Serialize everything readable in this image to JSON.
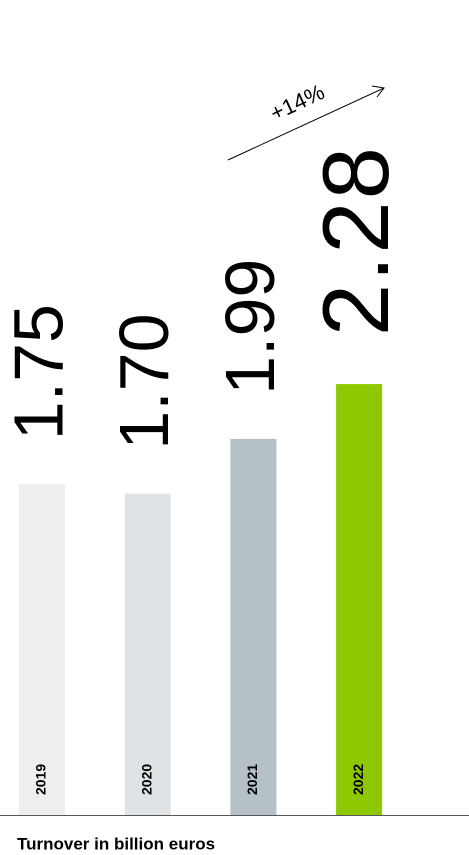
{
  "chart_data": {
    "type": "bar",
    "title": "Turnover in billion euros",
    "categories": [
      "2019",
      "2020",
      "2021",
      "2022"
    ],
    "values": [
      1.75,
      1.7,
      1.99,
      2.28
    ],
    "value_labels": [
      "1.75",
      "1.70",
      "1.99",
      "2.28"
    ],
    "colors": [
      "#eceef0",
      "#dfe3e6",
      "#b5c0c7",
      "#8dc800"
    ],
    "annotation": "+14%"
  }
}
